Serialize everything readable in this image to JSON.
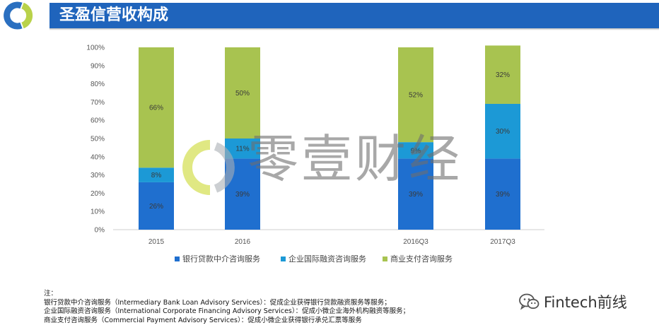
{
  "header": {
    "title": "圣盈信营收构成"
  },
  "chart_data": {
    "type": "bar",
    "stacked": true,
    "categories": [
      "2015",
      "2016",
      "2016Q3",
      "2017Q3"
    ],
    "series": [
      {
        "name": "银行贷款中介咨询服务",
        "color": "#1f6fcf",
        "values": [
          26,
          39,
          39,
          39
        ],
        "labels": [
          "26%",
          "39%",
          "39%",
          "39%"
        ]
      },
      {
        "name": "企业国际融资咨询服务",
        "color": "#1c99d6",
        "values": [
          8,
          11,
          9,
          30
        ],
        "labels": [
          "8%",
          "11%",
          "9%",
          "30%"
        ]
      },
      {
        "name": "商业支付咨询服务",
        "color": "#a8c350",
        "values": [
          66,
          50,
          52,
          32
        ],
        "labels": [
          "66%",
          "50%",
          "52%",
          "32%"
        ]
      }
    ],
    "yticks": [
      "0%",
      "10%",
      "20%",
      "30%",
      "40%",
      "50%",
      "60%",
      "70%",
      "80%",
      "90%",
      "100%"
    ],
    "ylim": [
      0,
      100
    ],
    "legend": "bottom-center",
    "grid": false
  },
  "notes": {
    "heading": "注：",
    "lines": [
      "银行贷款中介咨询服务（Intermediary Bank Loan Advisory Services）：促成企业获得银行贷款融资服务等服务；",
      "企业国际融资咨询服务（International Corporate Financing Advisory Services）：促成小微企业海外机构融资等服务；",
      "商业支付咨询服务（Commercial Payment Advisory Services）：促成小微企业获得银行承兑汇票等服务"
    ]
  },
  "watermark": {
    "text": "零壹财经"
  },
  "brand": {
    "text": "Fintech前线",
    "icon": "wechat-icon"
  }
}
